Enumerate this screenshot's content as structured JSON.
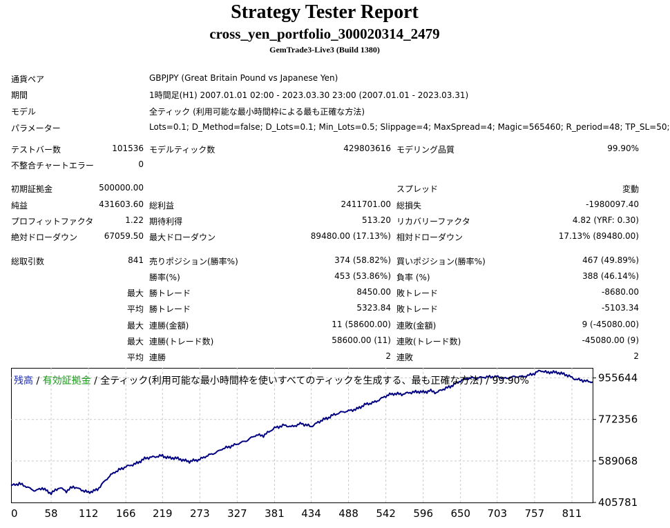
{
  "header": {
    "title": "Strategy Tester Report",
    "ea_name": "cross_yen_portfolio_300020314_2479",
    "server": "GemTrade3-Live3 (Build 1380)"
  },
  "info": [
    {
      "label": "通貨ペア",
      "value": "GBPJPY (Great Britain Pound vs Japanese Yen)"
    },
    {
      "label": "期間",
      "value": "1時間足(H1) 2007.01.01 02:00 - 2023.03.30 23:00 (2007.01.01 - 2023.03.31)"
    },
    {
      "label": "モデル",
      "value": "全ティック (利用可能な最小時間枠による最も正確な方法)"
    },
    {
      "label": "パラメーター",
      "value": "Lots=0.1; D_Method=false; D_Lots=0.1; Min_Lots=0.5; Slippage=4; MaxSpread=4; Magic=565460; R_period=48; TP_SL=50;"
    }
  ],
  "rows": [
    {
      "top": 206,
      "cells": [
        "テストバー数",
        "101536",
        "モデルティック数",
        "429803616",
        "モデリング品質",
        "99.90%"
      ]
    },
    {
      "top": 229,
      "cells": [
        "不整合チャートエラー",
        "0",
        "",
        "",
        "",
        ""
      ]
    },
    {
      "top": 263,
      "cells": [
        "初期証拠金",
        "500000.00",
        "",
        "",
        "スプレッド",
        "変動"
      ]
    },
    {
      "top": 287,
      "cells": [
        "純益",
        "431603.60",
        "総利益",
        "2411701.00",
        "総損失",
        "-1980097.40"
      ]
    },
    {
      "top": 310,
      "cells": [
        "プロフィットファクタ",
        "1.22",
        "期待利得",
        "513.20",
        "リカバリーファクタ",
        "4.82 (YRF: 0.30)"
      ]
    },
    {
      "top": 333,
      "cells": [
        "絶対ドローダウン",
        "67059.50",
        "最大ドローダウン",
        "89480.00 (17.13%)",
        "相対ドローダウン",
        "17.13% (89480.00)"
      ]
    },
    {
      "top": 368,
      "cells": [
        "総取引数",
        "841",
        "売りポジション(勝率%)",
        "374 (58.82%)",
        "買いポジション(勝率%)",
        "467 (49.89%)"
      ]
    },
    {
      "top": 391,
      "cells": [
        "",
        "",
        "勝率(%)",
        "453 (53.86%)",
        "負率 (%)",
        "388 (46.14%)"
      ]
    },
    {
      "top": 414,
      "cells": [
        "",
        "最大",
        "勝トレード",
        "8450.00",
        "敗トレード",
        "-8680.00"
      ]
    },
    {
      "top": 437,
      "cells": [
        "",
        "平均",
        "勝トレード",
        "5323.84",
        "敗トレード",
        "-5103.34"
      ]
    },
    {
      "top": 461,
      "cells": [
        "",
        "最大",
        "連勝(金額)",
        "11 (58600.00)",
        "連敗(金額)",
        "9 (-45080.00)"
      ]
    },
    {
      "top": 484,
      "cells": [
        "",
        "最大",
        "連勝(トレード数)",
        "58600.00 (11)",
        "連敗(トレード数)",
        "-45080.00 (9)"
      ]
    },
    {
      "top": 507,
      "cells": [
        "",
        "平均",
        "連勝",
        "2",
        "連敗",
        "2"
      ]
    }
  ],
  "chart_legend": {
    "balance": "残高",
    "sep1": " / ",
    "equity": "有効証拠金",
    "sep2": " / ",
    "model": "全ティック(利用可能な最小時間枠を使いすべてのティックを生成する、最も正確な方法) / 99.90%"
  },
  "chart_data": {
    "type": "line",
    "x_ticks": [
      "0",
      "58",
      "112",
      "166",
      "219",
      "273",
      "327",
      "381",
      "434",
      "488",
      "542",
      "596",
      "650",
      "703",
      "757",
      "811"
    ],
    "y_ticks": [
      "955644",
      "772356",
      "589068",
      "405781"
    ],
    "xlim": [
      0,
      841
    ],
    "ylim": [
      405781,
      1000000
    ],
    "series": [
      {
        "color": "#000080",
        "x": [
          0,
          12,
          24,
          35,
          45,
          58,
          70,
          80,
          90,
          100,
          112,
          125,
          135,
          150,
          166,
          180,
          195,
          205,
          219,
          230,
          245,
          258,
          273,
          290,
          305,
          315,
          327,
          340,
          355,
          365,
          381,
          395,
          405,
          420,
          434,
          450,
          465,
          475,
          488,
          500,
          515,
          530,
          542,
          555,
          565,
          575,
          585,
          596,
          605,
          615,
          625,
          635,
          650,
          665,
          680,
          700,
          715,
          730,
          745,
          757,
          765,
          775,
          790,
          805,
          815,
          825,
          835,
          841
        ],
        "values": [
          480000,
          490000,
          475000,
          455000,
          468000,
          448000,
          472000,
          455000,
          475000,
          462000,
          448000,
          465000,
          500000,
          540000,
          565000,
          578000,
          600000,
          605000,
          612000,
          602000,
          598000,
          585000,
          598000,
          618000,
          642000,
          650000,
          662000,
          680000,
          702000,
          700000,
          735000,
          748000,
          742000,
          752000,
          740000,
          770000,
          790000,
          800000,
          812000,
          820000,
          840000,
          855000,
          875000,
          888000,
          885000,
          892000,
          895000,
          892000,
          900000,
          890000,
          905000,
          915000,
          945000,
          955000,
          958000,
          960000,
          955000,
          960000,
          965000,
          975000,
          988000,
          978000,
          982000,
          965000,
          950000,
          945000,
          940000,
          938000
        ]
      }
    ],
    "grid": true
  }
}
